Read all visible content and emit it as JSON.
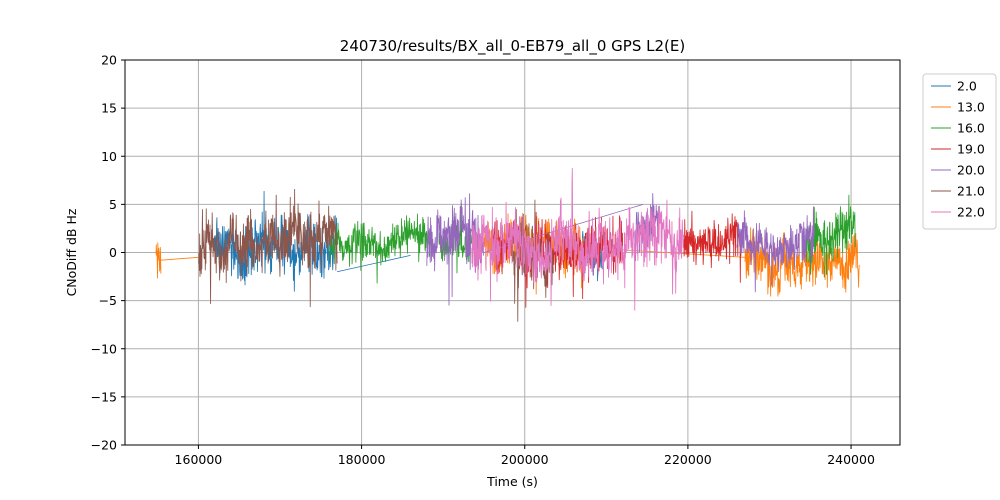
{
  "chart_data": {
    "type": "line",
    "title": "240730/results/BX_all_0-EB79_all_0 GPS L2(E)",
    "xlabel": "Time (s)",
    "ylabel": "CNoDiff dB Hz",
    "xlim": [
      151000,
      246000
    ],
    "ylim": [
      -20,
      20
    ],
    "xticks": [
      160000,
      180000,
      200000,
      220000,
      240000
    ],
    "yticks": [
      -20,
      -15,
      -10,
      -5,
      0,
      5,
      10,
      15,
      20
    ],
    "grid": true,
    "legend_position": "outside-top-right",
    "series": [
      {
        "name": "2.0",
        "color": "#1f77b4",
        "segments": [
          {
            "x0": 162000,
            "x1": 177000,
            "center": 0.8,
            "amp": 2.2
          },
          {
            "x0": 207000,
            "x1": 209500,
            "center": -0.5,
            "amp": 2.0
          }
        ],
        "bridges": [
          [
            177000,
            -2.0,
            186000,
            -0.3
          ]
        ]
      },
      {
        "name": "13.0",
        "color": "#ff7f0e",
        "segments": [
          {
            "x0": 154800,
            "x1": 155400,
            "center": -0.2,
            "amp": 1.4
          },
          {
            "x0": 195000,
            "x1": 207500,
            "center": 0.6,
            "amp": 2.2
          },
          {
            "x0": 227000,
            "x1": 241000,
            "center": -0.8,
            "amp": 1.9
          }
        ],
        "bridges": [
          [
            155400,
            -0.8,
            160000,
            -0.5
          ],
          [
            207500,
            0.5,
            227000,
            -0.5
          ]
        ]
      },
      {
        "name": "16.0",
        "color": "#2ca02c",
        "segments": [
          {
            "x0": 176000,
            "x1": 188500,
            "center": 1.0,
            "amp": 1.5
          },
          {
            "x0": 189500,
            "x1": 193500,
            "center": 1.0,
            "amp": 1.5
          },
          {
            "x0": 234500,
            "x1": 240500,
            "center": 1.5,
            "amp": 2.3
          }
        ],
        "bridges": []
      },
      {
        "name": "19.0",
        "color": "#d62728",
        "segments": [
          {
            "x0": 196000,
            "x1": 212000,
            "center": 0.5,
            "amp": 2.0
          },
          {
            "x0": 219500,
            "x1": 226500,
            "center": 1.2,
            "amp": 1.8
          }
        ],
        "bridges": []
      },
      {
        "name": "20.0",
        "color": "#9467bd",
        "segments": [
          {
            "x0": 188000,
            "x1": 195000,
            "center": 1.0,
            "amp": 2.5
          },
          {
            "x0": 213500,
            "x1": 216500,
            "center": 1.8,
            "amp": 2.2
          },
          {
            "x0": 226000,
            "x1": 235500,
            "center": 1.4,
            "amp": 1.8
          }
        ],
        "bridges": [
          [
            195000,
            0.0,
            214500,
            5.0
          ]
        ]
      },
      {
        "name": "21.0",
        "color": "#8c564b",
        "segments": [
          {
            "x0": 160000,
            "x1": 177000,
            "center": 1.2,
            "amp": 2.3
          },
          {
            "x0": 198500,
            "x1": 203500,
            "center": -1.0,
            "amp": 2.8
          }
        ],
        "bridges": []
      },
      {
        "name": "22.0",
        "color": "#e377c2",
        "segments": [
          {
            "x0": 193500,
            "x1": 219500,
            "center": 0.8,
            "amp": 2.3
          }
        ],
        "bridges": []
      }
    ]
  }
}
